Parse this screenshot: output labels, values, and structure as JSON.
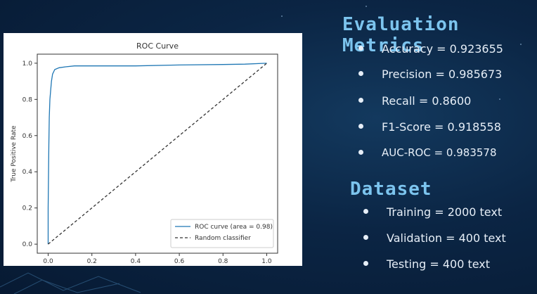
{
  "chart_data": {
    "type": "line",
    "title": "ROC Curve",
    "xlabel": "False Positive Rate",
    "ylabel": "True Positive Rate",
    "xlim": [
      -0.05,
      1.05
    ],
    "ylim": [
      -0.05,
      1.05
    ],
    "xticks": [
      "0.0",
      "0.2",
      "0.4",
      "0.6",
      "0.8",
      "1.0"
    ],
    "yticks": [
      "0.0",
      "0.2",
      "0.4",
      "0.6",
      "0.8",
      "1.0"
    ],
    "legend_position": "lower-right",
    "series": [
      {
        "name": "ROC curve (area = 0.98)",
        "color": "#1f77b4",
        "style": "solid",
        "x": [
          0.0,
          0.0,
          0.003,
          0.005,
          0.008,
          0.012,
          0.015,
          0.02,
          0.03,
          0.05,
          0.08,
          0.12,
          0.2,
          0.4,
          0.6,
          0.8,
          0.9,
          1.0
        ],
        "y": [
          0.0,
          0.2,
          0.55,
          0.7,
          0.8,
          0.86,
          0.9,
          0.94,
          0.965,
          0.975,
          0.98,
          0.985,
          0.985,
          0.985,
          0.99,
          0.993,
          0.995,
          1.0
        ]
      },
      {
        "name": "Random classifier",
        "color": "#333333",
        "style": "dashed",
        "x": [
          0,
          1
        ],
        "y": [
          0,
          1
        ]
      }
    ]
  },
  "metrics": {
    "title": "Evaluation Metrics",
    "items": [
      "Accuracy = 0.923655",
      "Precision = 0.985673",
      "Recall = 0.8600",
      "F1-Score = 0.918558",
      "AUC-ROC = 0.983578"
    ]
  },
  "dataset": {
    "title": "Dataset",
    "items": [
      "Training = 2000 text",
      "Validation = 400 text",
      "Testing = 400 text"
    ]
  }
}
